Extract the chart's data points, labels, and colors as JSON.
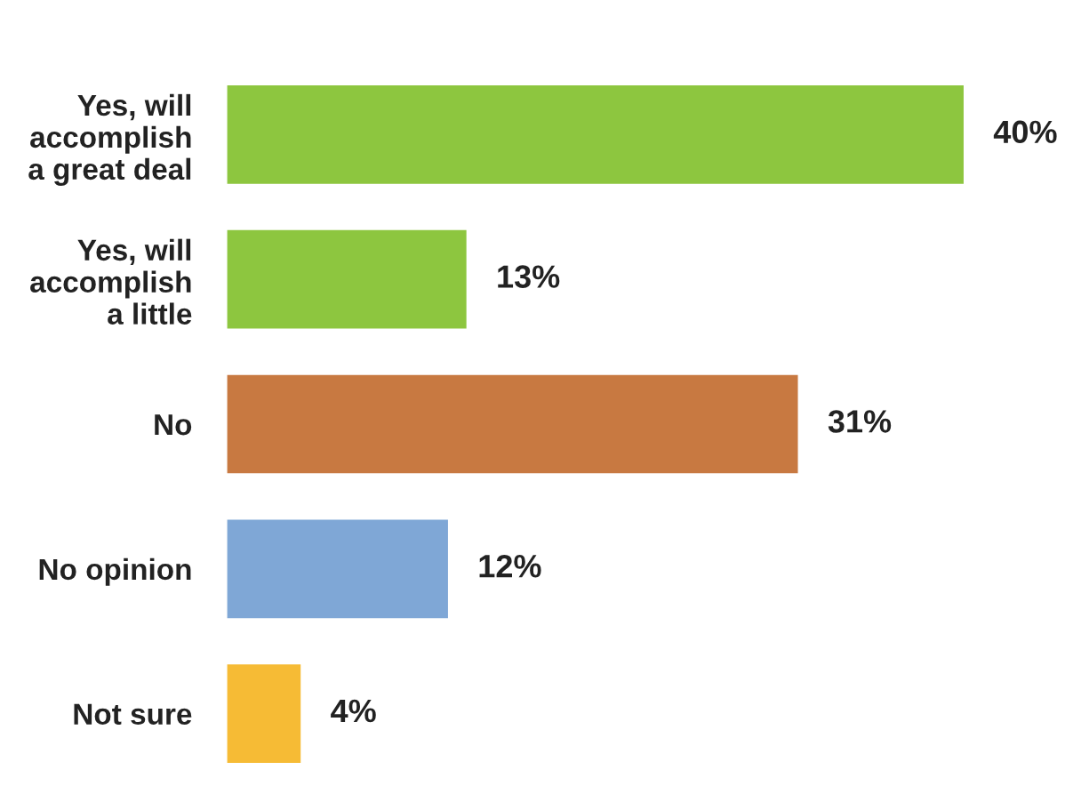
{
  "chart_data": {
    "type": "bar",
    "orientation": "horizontal",
    "categories": [
      "Yes, will\naccomplish\na great deal",
      "Yes, will\naccomplish\na little",
      "No",
      "No opinion",
      "Not sure"
    ],
    "values": [
      40,
      13,
      31,
      12,
      4
    ],
    "colors": [
      "#8dc63f",
      "#8dc63f",
      "#c87941",
      "#7fa7d6",
      "#f6bb35"
    ],
    "value_labels": [
      "40%",
      "13%",
      "31%",
      "12%",
      "4%"
    ],
    "grid": false,
    "legend": false
  }
}
